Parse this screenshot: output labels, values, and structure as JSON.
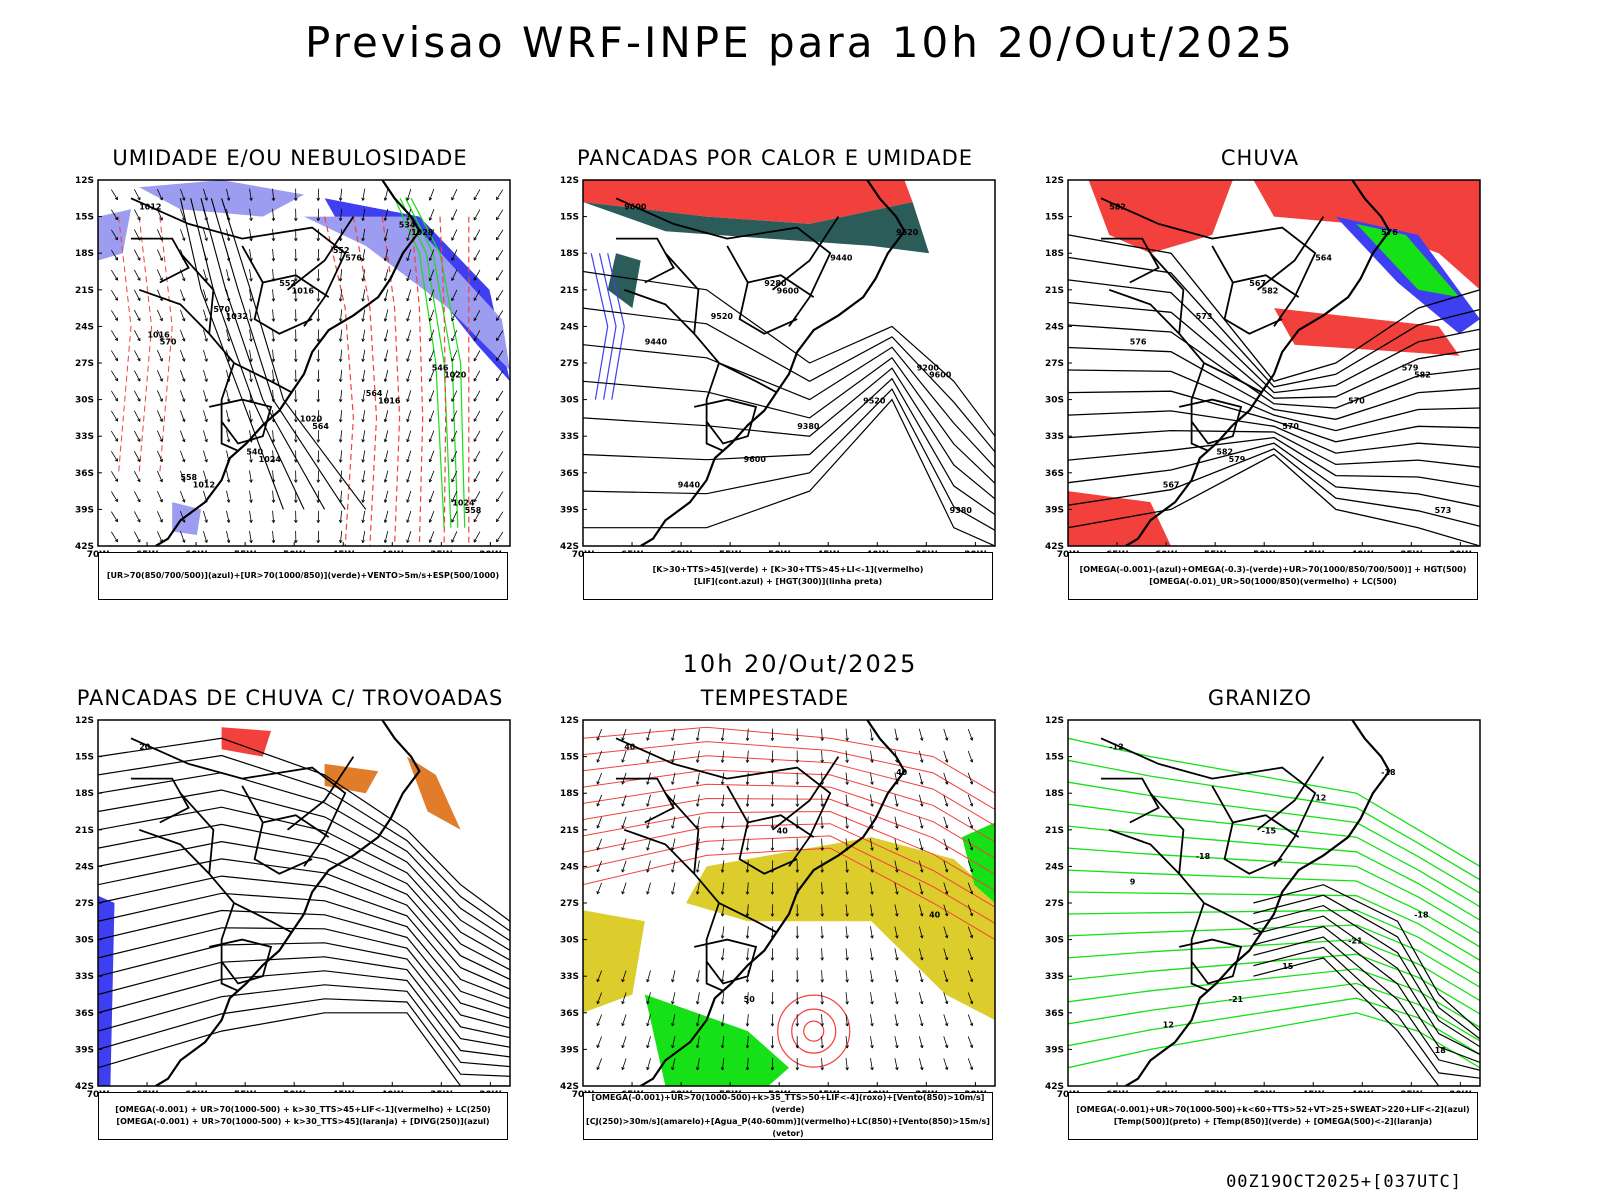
{
  "title": "Previsao WRF-INPE  para 10h 20/Out/2025",
  "subtitle": "10h 20/Out/2025",
  "footer": "00Z19OCT2025+[037UTC]",
  "axes": {
    "lat_labels": [
      "12S",
      "15S",
      "18S",
      "21S",
      "24S",
      "27S",
      "30S",
      "33S",
      "36S",
      "39S",
      "42S"
    ],
    "lon_labels": [
      "70W",
      "65W",
      "60W",
      "55W",
      "50W",
      "45W",
      "40W",
      "35W",
      "30W"
    ]
  },
  "colors": {
    "red": "#f2413c",
    "blue": "#3f3ff2",
    "lightblue": "#9c9cf0",
    "green": "#16e016",
    "yellow": "#dccd2c",
    "darkteal": "#2c5c5a",
    "orange": "#e07c2a",
    "purple": "#9a1ad2"
  },
  "panels": [
    {
      "title": "UMIDADE E/OU NEBULOSIDADE",
      "legend": [
        "[UR>70(850/700/500)](azul)+[UR>70(1000/850)](verde)+VENTO>5m/s+ESP(500/1000)"
      ],
      "contour_labels": [
        "1012",
        "1016",
        "1020",
        "1024",
        "1028",
        "1032",
        "1016",
        "1012",
        "576",
        "570",
        "564",
        "558",
        "552",
        "546",
        "540",
        "534",
        "570",
        "564",
        "558",
        "552",
        "1016",
        "1020",
        "1024"
      ]
    },
    {
      "title": "PANCADAS POR CALOR E UMIDADE",
      "legend": [
        "[K>30+TTS>45](verde) + [K>30+TTS>45+LI<-1](vermelho)",
        "[LIF](cont.azul) + [HGT(300)](linha preta)"
      ],
      "contour_labels": [
        "9600",
        "9600",
        "9600",
        "9600",
        "9520",
        "9520",
        "9520",
        "9440",
        "9440",
        "9440",
        "9380",
        "9380",
        "9280",
        "9200"
      ]
    },
    {
      "title": "CHUVA",
      "legend": [
        "[OMEGA(-0.001)-(azul)+OMEGA(-0.3)-(verde)+UR>70(1000/850/700/500)] + HGT(500)",
        "[OMEGA(-0.01)_UR>50(1000/850)(vermelho) + LC(500)"
      ],
      "contour_labels": [
        "582",
        "582",
        "582",
        "579",
        "576",
        "573",
        "570",
        "567",
        "564",
        "576",
        "570",
        "573",
        "567",
        "579",
        "582"
      ]
    },
    {
      "title": "PANCADAS DE CHUVA C/ TROVOADAS",
      "legend": [
        "[OMEGA(-0.001) + UR>70(1000-500) + k>30_TTS>45+LIF<-1](vermelho) + LC(250)",
        "[OMEGA(-0.001) + UR>70(1000-500) + k>30_TTS>45](laranja) + [DIVG(250)](azul)"
      ],
      "contour_labels": [
        "20"
      ]
    },
    {
      "title": "TEMPESTADE",
      "legend": [
        "[OMEGA(-0.001)+UR>70(1000-500)+k>35_TTS>50+LIF<-4](roxo)+[Vento(850)>10m/s](verde)",
        "[CJ(250)>30m/s](amarelo)+[Agua_P(40-60mm)](vermelho)+LC(850)+[Vento(850)>15m/s](vetor)"
      ],
      "contour_labels": [
        "40",
        "40",
        "40",
        "50",
        "40"
      ]
    },
    {
      "title": "GRANIZO",
      "legend": [
        "[OMEGA(-0.001)+UR>70(1000-500)+k<60+TTS>52+VT>25+SWEAT>220+LIF<-2](azul)",
        "[Temp(500)](preto) + [Temp(850)](verde) + [OMEGA(500)<-2](laranja)"
      ],
      "contour_labels": [
        "-12",
        "-15",
        "-18",
        "-21",
        "-18",
        "-18",
        "-21",
        "12",
        "12",
        "9",
        "15",
        "18"
      ]
    }
  ]
}
